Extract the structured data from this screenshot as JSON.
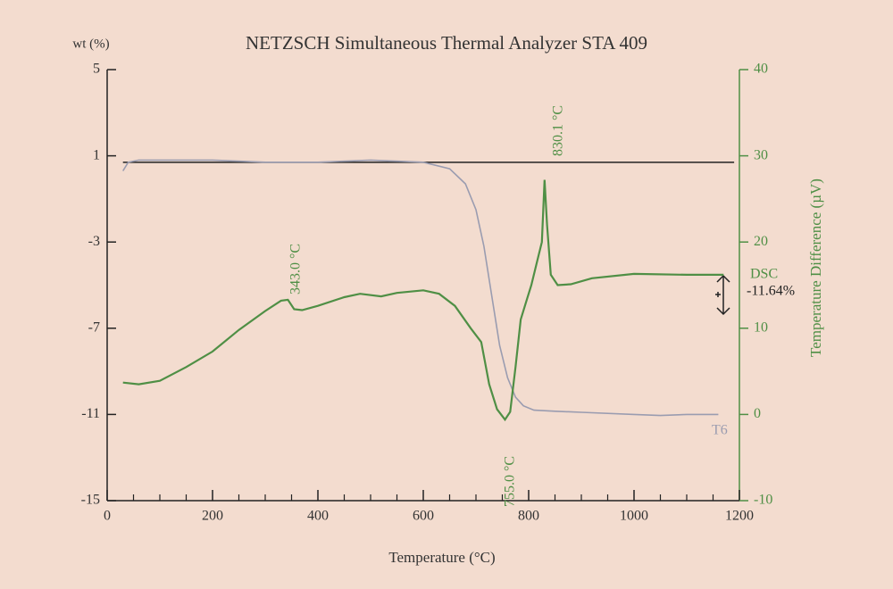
{
  "chart_data": {
    "type": "line",
    "title": "NETZSCH Simultaneous Thermal Analyzer STA 409",
    "x_label": "Temperature (°C)",
    "y_label": "wt (%)",
    "y2_label": "Temperature Difference (µV)",
    "xlim": [
      0,
      1200
    ],
    "xticks": [
      0,
      200,
      400,
      600,
      800,
      1000,
      1200
    ],
    "xminorticks": [
      50,
      100,
      150,
      250,
      300,
      350,
      450,
      500,
      550,
      650,
      700,
      750,
      850,
      900,
      950,
      1050,
      1100,
      1150
    ],
    "ylim": [
      -15,
      5
    ],
    "yticks": [
      5,
      1,
      -3,
      -7,
      -11,
      -15
    ],
    "y2lim": [
      -10,
      40
    ],
    "y2ticks": [
      -10,
      0,
      10,
      20,
      30,
      40
    ],
    "reference_line": {
      "x": [
        30,
        1190
      ],
      "y": 0.7,
      "color": "#222222"
    },
    "series": [
      {
        "name": "T6",
        "color": "#9a9cb0",
        "x": [
          30,
          40,
          60,
          100,
          200,
          300,
          400,
          500,
          600,
          650,
          680,
          700,
          715,
          730,
          745,
          760,
          775,
          790,
          810,
          850,
          900,
          1000,
          1050,
          1100,
          1160
        ],
        "values": [
          0.3,
          0.7,
          0.8,
          0.8,
          0.8,
          0.7,
          0.7,
          0.8,
          0.7,
          0.4,
          -0.3,
          -1.5,
          -3.2,
          -5.5,
          -7.8,
          -9.3,
          -10.2,
          -10.6,
          -10.8,
          -10.85,
          -10.9,
          -11.0,
          -11.05,
          -11.0,
          -11.0
        ]
      },
      {
        "name": "DSC",
        "color": "#4f8f45",
        "axis": "y2",
        "x": [
          30,
          60,
          100,
          150,
          200,
          250,
          300,
          330,
          343,
          355,
          370,
          400,
          450,
          480,
          520,
          550,
          600,
          630,
          660,
          690,
          710,
          725,
          740,
          755,
          765,
          775,
          785,
          795,
          805,
          815,
          825,
          830.1,
          835,
          842,
          855,
          880,
          920,
          1000,
          1100,
          1170
        ],
        "values": [
          3.7,
          3.5,
          3.9,
          5.5,
          7.3,
          9.8,
          12,
          13.2,
          13.3,
          12.2,
          12.1,
          12.6,
          13.6,
          14,
          13.7,
          14.1,
          14.4,
          14.0,
          12.6,
          10,
          8.4,
          3.5,
          0.6,
          -0.6,
          0.3,
          5.5,
          11,
          13,
          15,
          17.5,
          20,
          27.2,
          22,
          16.2,
          15,
          15.1,
          15.8,
          16.3,
          16.2,
          16.2
        ]
      }
    ],
    "annotations": [
      "343.0 °C",
      "755.0 °C",
      "830.1 °C",
      "-11.64%"
    ]
  }
}
